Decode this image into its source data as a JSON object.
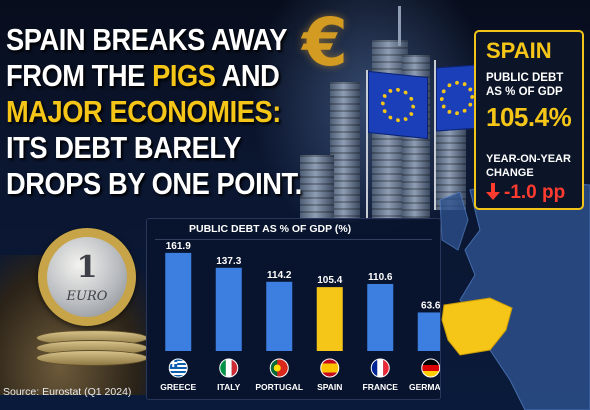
{
  "headline": {
    "line1": "SPAIN BREAKS AWAY",
    "line2_prefix": "FROM THE ",
    "line2_highlight": "PIGS",
    "line2_suffix": " AND",
    "line3": "MAJOR ECONOMIES:",
    "line4": "ITS DEBT BARELY",
    "line5": "DROPS BY ONE POINT."
  },
  "card": {
    "country": "SPAIN",
    "metric": "PUBLIC DEBT AS % OF GDP",
    "value": "105.4%",
    "yoy_label": "YEAR-ON-YEAR CHANGE",
    "change": "-1.0 pp",
    "change_icon": "arrow-down-icon"
  },
  "coin": {
    "number": "1",
    "label": "EURO"
  },
  "source": "Source: Eurostat (Q1 2024)",
  "colors": {
    "accent": "#f5c518",
    "bar_default": "#3d7fe0",
    "bar_highlight": "#f5c518",
    "negative": "#ff3b30"
  },
  "chart_data": {
    "type": "bar",
    "title": "PUBLIC DEBT AS % OF GDP (%)",
    "categories": [
      "GREECE",
      "ITALY",
      "PORTUGAL",
      "SPAIN",
      "FRANCE",
      "GERMANY"
    ],
    "values": [
      161.9,
      137.3,
      114.2,
      105.4,
      110.6,
      63.6
    ],
    "highlight": "SPAIN",
    "flags": [
      "greece-flag-icon",
      "italy-flag-icon",
      "portugal-flag-icon",
      "spain-flag-icon",
      "france-flag-icon",
      "germany-flag-icon"
    ],
    "ylim": [
      0,
      165
    ],
    "grid": false,
    "legend": "none"
  }
}
